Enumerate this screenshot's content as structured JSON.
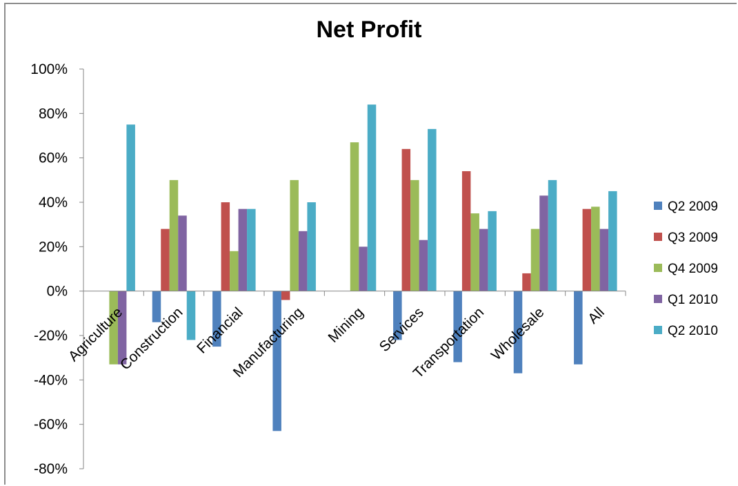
{
  "chart_data": {
    "type": "bar",
    "title": "Net Profit",
    "xlabel": "",
    "ylabel": "",
    "ylim": [
      -80,
      100
    ],
    "yticks": [
      "100%",
      "80%",
      "60%",
      "40%",
      "20%",
      "0%",
      "-20%",
      "-40%",
      "-60%",
      "-80%"
    ],
    "ytick_values": [
      100,
      80,
      60,
      40,
      20,
      0,
      -20,
      -40,
      -60,
      -80
    ],
    "legend_position": "right",
    "grid": false,
    "categories": [
      "Agriculture",
      "Construction",
      "Financial",
      "Manufacturing",
      "Mining",
      "Services",
      "Transportation",
      "Wholesale",
      "All"
    ],
    "series": [
      {
        "name": "Q2 2009",
        "color": "#4f81bd",
        "values": [
          0,
          -14,
          -25,
          -63,
          0,
          -22,
          -32,
          -37,
          -33
        ]
      },
      {
        "name": "Q3 2009",
        "color": "#c0504d",
        "values": [
          0,
          28,
          40,
          -4,
          0,
          64,
          54,
          8,
          37
        ]
      },
      {
        "name": "Q4 2009",
        "color": "#9bbb59",
        "values": [
          -33,
          50,
          18,
          50,
          67,
          50,
          35,
          28,
          38
        ]
      },
      {
        "name": "Q1 2010",
        "color": "#8064a2",
        "values": [
          -33,
          34,
          37,
          27,
          20,
          23,
          28,
          43,
          28
        ]
      },
      {
        "name": "Q2 2010",
        "color": "#4bacc6",
        "values": [
          75,
          -22,
          37,
          40,
          84,
          73,
          36,
          50,
          45
        ]
      }
    ]
  }
}
